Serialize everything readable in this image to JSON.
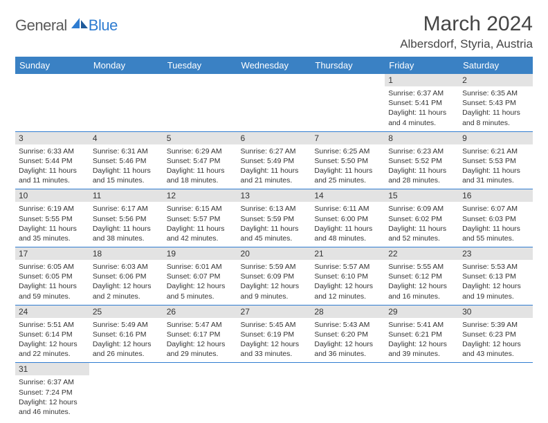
{
  "logo": {
    "general": "General",
    "blue": "Blue"
  },
  "title": "March 2024",
  "location": "Albersdorf, Styria, Austria",
  "colors": {
    "header_bg": "#3a81c4",
    "header_text": "#ffffff",
    "daynum_bg": "#e3e3e3",
    "border": "#2e7cd1",
    "logo_gray": "#5a5a5a",
    "logo_blue": "#2e7cd1",
    "text": "#333333"
  },
  "typography": {
    "title_fontsize": 30,
    "location_fontsize": 17,
    "header_fontsize": 13,
    "daynum_fontsize": 12,
    "body_fontsize": 10.5
  },
  "weekdays": [
    "Sunday",
    "Monday",
    "Tuesday",
    "Wednesday",
    "Thursday",
    "Friday",
    "Saturday"
  ],
  "weeks": [
    [
      null,
      null,
      null,
      null,
      null,
      {
        "n": "1",
        "sr": "Sunrise: 6:37 AM",
        "ss": "Sunset: 5:41 PM",
        "dl": "Daylight: 11 hours and 4 minutes."
      },
      {
        "n": "2",
        "sr": "Sunrise: 6:35 AM",
        "ss": "Sunset: 5:43 PM",
        "dl": "Daylight: 11 hours and 8 minutes."
      }
    ],
    [
      {
        "n": "3",
        "sr": "Sunrise: 6:33 AM",
        "ss": "Sunset: 5:44 PM",
        "dl": "Daylight: 11 hours and 11 minutes."
      },
      {
        "n": "4",
        "sr": "Sunrise: 6:31 AM",
        "ss": "Sunset: 5:46 PM",
        "dl": "Daylight: 11 hours and 15 minutes."
      },
      {
        "n": "5",
        "sr": "Sunrise: 6:29 AM",
        "ss": "Sunset: 5:47 PM",
        "dl": "Daylight: 11 hours and 18 minutes."
      },
      {
        "n": "6",
        "sr": "Sunrise: 6:27 AM",
        "ss": "Sunset: 5:49 PM",
        "dl": "Daylight: 11 hours and 21 minutes."
      },
      {
        "n": "7",
        "sr": "Sunrise: 6:25 AM",
        "ss": "Sunset: 5:50 PM",
        "dl": "Daylight: 11 hours and 25 minutes."
      },
      {
        "n": "8",
        "sr": "Sunrise: 6:23 AM",
        "ss": "Sunset: 5:52 PM",
        "dl": "Daylight: 11 hours and 28 minutes."
      },
      {
        "n": "9",
        "sr": "Sunrise: 6:21 AM",
        "ss": "Sunset: 5:53 PM",
        "dl": "Daylight: 11 hours and 31 minutes."
      }
    ],
    [
      {
        "n": "10",
        "sr": "Sunrise: 6:19 AM",
        "ss": "Sunset: 5:55 PM",
        "dl": "Daylight: 11 hours and 35 minutes."
      },
      {
        "n": "11",
        "sr": "Sunrise: 6:17 AM",
        "ss": "Sunset: 5:56 PM",
        "dl": "Daylight: 11 hours and 38 minutes."
      },
      {
        "n": "12",
        "sr": "Sunrise: 6:15 AM",
        "ss": "Sunset: 5:57 PM",
        "dl": "Daylight: 11 hours and 42 minutes."
      },
      {
        "n": "13",
        "sr": "Sunrise: 6:13 AM",
        "ss": "Sunset: 5:59 PM",
        "dl": "Daylight: 11 hours and 45 minutes."
      },
      {
        "n": "14",
        "sr": "Sunrise: 6:11 AM",
        "ss": "Sunset: 6:00 PM",
        "dl": "Daylight: 11 hours and 48 minutes."
      },
      {
        "n": "15",
        "sr": "Sunrise: 6:09 AM",
        "ss": "Sunset: 6:02 PM",
        "dl": "Daylight: 11 hours and 52 minutes."
      },
      {
        "n": "16",
        "sr": "Sunrise: 6:07 AM",
        "ss": "Sunset: 6:03 PM",
        "dl": "Daylight: 11 hours and 55 minutes."
      }
    ],
    [
      {
        "n": "17",
        "sr": "Sunrise: 6:05 AM",
        "ss": "Sunset: 6:05 PM",
        "dl": "Daylight: 11 hours and 59 minutes."
      },
      {
        "n": "18",
        "sr": "Sunrise: 6:03 AM",
        "ss": "Sunset: 6:06 PM",
        "dl": "Daylight: 12 hours and 2 minutes."
      },
      {
        "n": "19",
        "sr": "Sunrise: 6:01 AM",
        "ss": "Sunset: 6:07 PM",
        "dl": "Daylight: 12 hours and 5 minutes."
      },
      {
        "n": "20",
        "sr": "Sunrise: 5:59 AM",
        "ss": "Sunset: 6:09 PM",
        "dl": "Daylight: 12 hours and 9 minutes."
      },
      {
        "n": "21",
        "sr": "Sunrise: 5:57 AM",
        "ss": "Sunset: 6:10 PM",
        "dl": "Daylight: 12 hours and 12 minutes."
      },
      {
        "n": "22",
        "sr": "Sunrise: 5:55 AM",
        "ss": "Sunset: 6:12 PM",
        "dl": "Daylight: 12 hours and 16 minutes."
      },
      {
        "n": "23",
        "sr": "Sunrise: 5:53 AM",
        "ss": "Sunset: 6:13 PM",
        "dl": "Daylight: 12 hours and 19 minutes."
      }
    ],
    [
      {
        "n": "24",
        "sr": "Sunrise: 5:51 AM",
        "ss": "Sunset: 6:14 PM",
        "dl": "Daylight: 12 hours and 22 minutes."
      },
      {
        "n": "25",
        "sr": "Sunrise: 5:49 AM",
        "ss": "Sunset: 6:16 PM",
        "dl": "Daylight: 12 hours and 26 minutes."
      },
      {
        "n": "26",
        "sr": "Sunrise: 5:47 AM",
        "ss": "Sunset: 6:17 PM",
        "dl": "Daylight: 12 hours and 29 minutes."
      },
      {
        "n": "27",
        "sr": "Sunrise: 5:45 AM",
        "ss": "Sunset: 6:19 PM",
        "dl": "Daylight: 12 hours and 33 minutes."
      },
      {
        "n": "28",
        "sr": "Sunrise: 5:43 AM",
        "ss": "Sunset: 6:20 PM",
        "dl": "Daylight: 12 hours and 36 minutes."
      },
      {
        "n": "29",
        "sr": "Sunrise: 5:41 AM",
        "ss": "Sunset: 6:21 PM",
        "dl": "Daylight: 12 hours and 39 minutes."
      },
      {
        "n": "30",
        "sr": "Sunrise: 5:39 AM",
        "ss": "Sunset: 6:23 PM",
        "dl": "Daylight: 12 hours and 43 minutes."
      }
    ],
    [
      {
        "n": "31",
        "sr": "Sunrise: 6:37 AM",
        "ss": "Sunset: 7:24 PM",
        "dl": "Daylight: 12 hours and 46 minutes."
      },
      null,
      null,
      null,
      null,
      null,
      null
    ]
  ]
}
